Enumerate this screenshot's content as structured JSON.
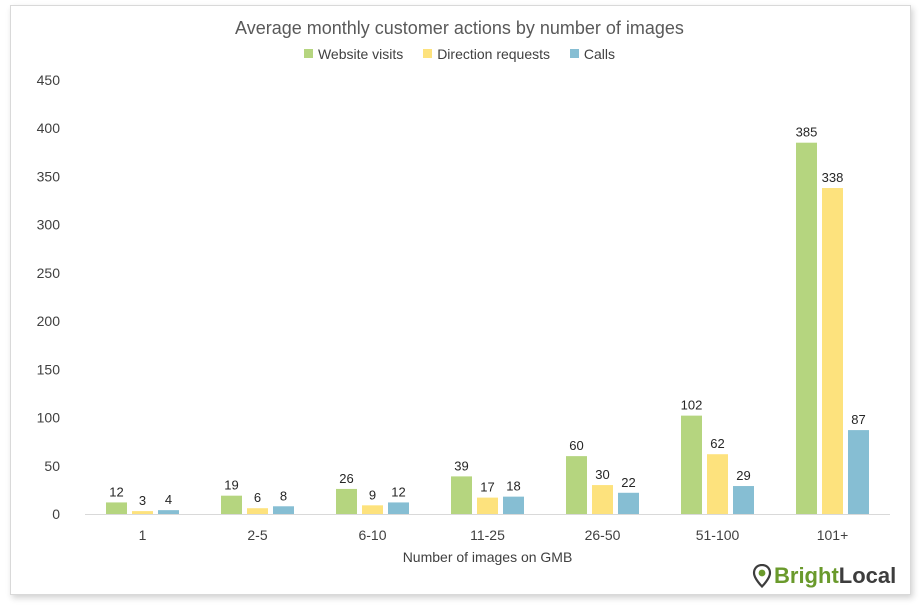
{
  "chart_data": {
    "type": "bar",
    "title": "Average monthly customer actions by number of images",
    "xlabel": "Number of images on GMB",
    "ylabel": "",
    "ylim": [
      0,
      450
    ],
    "yticks": [
      0,
      50,
      100,
      150,
      200,
      250,
      300,
      350,
      400,
      450
    ],
    "categories": [
      "1",
      "2-5",
      "6-10",
      "11-25",
      "26-50",
      "51-100",
      "101+"
    ],
    "series": [
      {
        "name": "Website visits",
        "color": "#b5d57f",
        "values": [
          12,
          19,
          26,
          39,
          60,
          102,
          385
        ]
      },
      {
        "name": "Direction requests",
        "color": "#fde27d",
        "values": [
          3,
          6,
          9,
          17,
          30,
          62,
          338
        ]
      },
      {
        "name": "Calls",
        "color": "#86bed3",
        "values": [
          4,
          8,
          12,
          18,
          22,
          29,
          87
        ]
      }
    ],
    "grid": false,
    "legend_position": "top"
  },
  "brand": {
    "part1": "Bright",
    "part2": "Local",
    "primary_color": "#6a9a2c",
    "icon": "map-pin-icon"
  }
}
